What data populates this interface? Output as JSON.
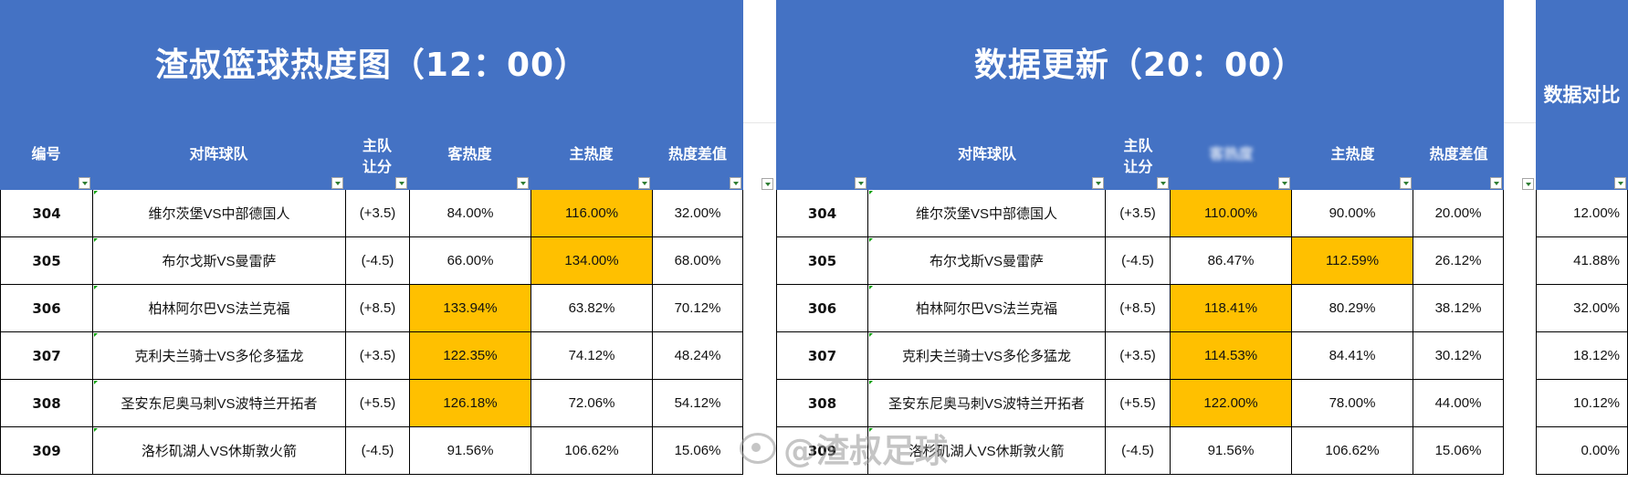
{
  "left": {
    "title": "渣叔篮球热度图（12：00）",
    "columns": [
      "编号",
      "对阵球队",
      "主队\n让分",
      "客热度",
      "主热度",
      "热度差值"
    ],
    "rows": [
      {
        "id": "304",
        "team": "维尔茨堡VS中部德国人",
        "handicap": "(+3.5)",
        "away": "84.00%",
        "home": "116.00%",
        "diff": "32.00%",
        "hl": "home"
      },
      {
        "id": "305",
        "team": "布尔戈斯VS曼雷萨",
        "handicap": "(-4.5)",
        "away": "66.00%",
        "home": "134.00%",
        "diff": "68.00%",
        "hl": "home"
      },
      {
        "id": "306",
        "team": "柏林阿尔巴VS法兰克福",
        "handicap": "(+8.5)",
        "away": "133.94%",
        "home": "63.82%",
        "diff": "70.12%",
        "hl": "away"
      },
      {
        "id": "307",
        "team": "克利夫兰骑士VS多伦多猛龙",
        "handicap": "(+3.5)",
        "away": "122.35%",
        "home": "74.12%",
        "diff": "48.24%",
        "hl": "away"
      },
      {
        "id": "308",
        "team": "圣安东尼奥马刺VS波特兰开拓者",
        "handicap": "(+5.5)",
        "away": "126.18%",
        "home": "72.06%",
        "diff": "54.12%",
        "hl": "away"
      },
      {
        "id": "309",
        "team": "洛杉矶湖人VS休斯敦火箭",
        "handicap": "(-4.5)",
        "away": "91.56%",
        "home": "106.62%",
        "diff": "15.06%",
        "hl": ""
      }
    ]
  },
  "right": {
    "title": "数据更新（20：00）",
    "columns": [
      "编号",
      "对阵球队",
      "主队\n让分",
      "客热度",
      "主热度",
      "热度差值"
    ],
    "rows": [
      {
        "id": "304",
        "team": "维尔茨堡VS中部德国人",
        "handicap": "(+3.5)",
        "away": "110.00%",
        "home": "90.00%",
        "diff": "20.00%",
        "hl": "away"
      },
      {
        "id": "305",
        "team": "布尔戈斯VS曼雷萨",
        "handicap": "(-4.5)",
        "away": "86.47%",
        "home": "112.59%",
        "diff": "26.12%",
        "hl": "home"
      },
      {
        "id": "306",
        "team": "柏林阿尔巴VS法兰克福",
        "handicap": "(+8.5)",
        "away": "118.41%",
        "home": "80.29%",
        "diff": "38.12%",
        "hl": "away"
      },
      {
        "id": "307",
        "team": "克利夫兰骑士VS多伦多猛龙",
        "handicap": "(+3.5)",
        "away": "114.53%",
        "home": "84.41%",
        "diff": "30.12%",
        "hl": "away"
      },
      {
        "id": "308",
        "team": "圣安东尼奥马刺VS波特兰开拓者",
        "handicap": "(+5.5)",
        "away": "122.00%",
        "home": "78.00%",
        "diff": "44.00%",
        "hl": "away"
      },
      {
        "id": "309",
        "team": "洛杉矶湖人VS休斯敦火箭",
        "handicap": "(-4.5)",
        "away": "91.56%",
        "home": "106.62%",
        "diff": "15.06%",
        "hl": ""
      }
    ]
  },
  "compare": {
    "title": "数据对比",
    "values": [
      "12.00%",
      "41.88%",
      "32.00%",
      "18.12%",
      "10.12%",
      "0.00%"
    ]
  },
  "watermark": "@渣叔足球",
  "colors": {
    "header": "#4472c4",
    "highlight": "#ffc000"
  }
}
